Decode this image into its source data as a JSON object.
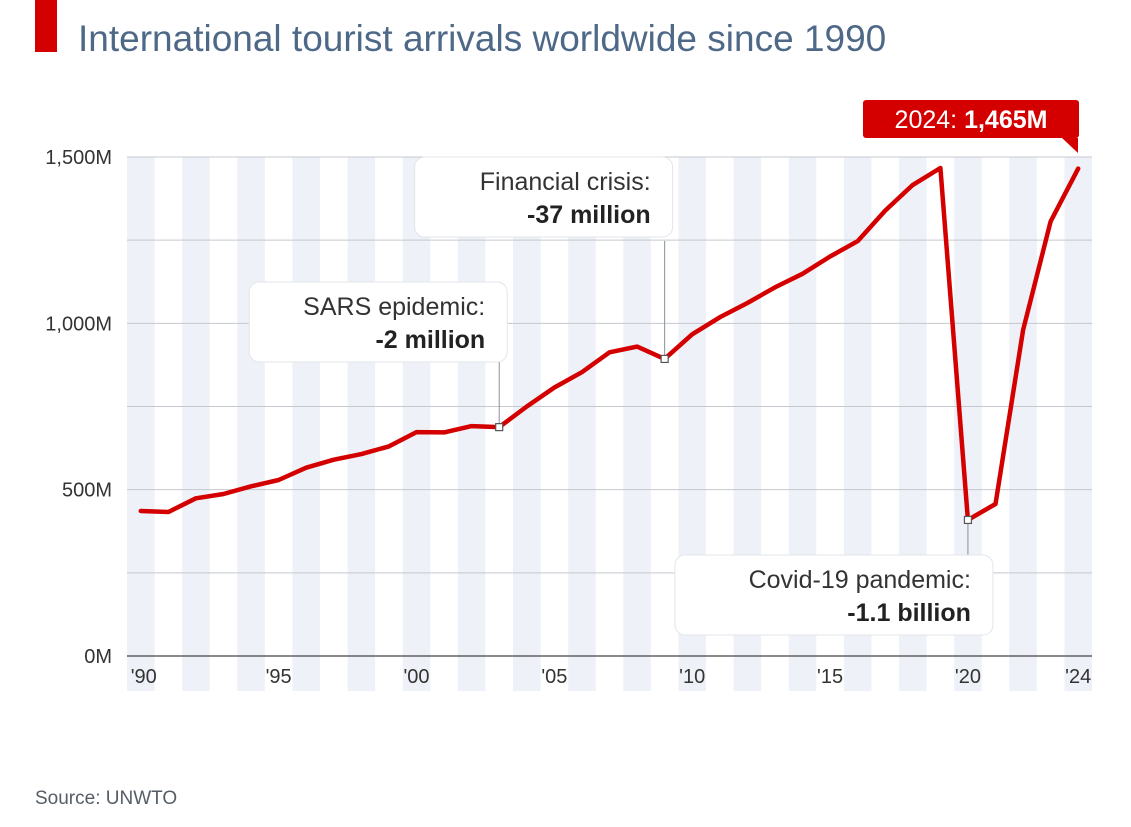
{
  "title": "International tourist arrivals worldwide since 1990",
  "source": "Source: UNWTO",
  "colors": {
    "accent": "#d40000",
    "line": "#d40000",
    "text": "#4e6887"
  },
  "chart_data": {
    "type": "line",
    "title": "International tourist arrivals worldwide since 1990",
    "ylim": [
      0,
      1500
    ],
    "y_ticks": [
      0,
      500,
      1000,
      1500
    ],
    "y_tick_labels": [
      "0M",
      "500M",
      "1,000M",
      "1,500M"
    ],
    "x_ticks": [
      1990,
      1995,
      2000,
      2005,
      2010,
      2015,
      2020,
      2024
    ],
    "x_tick_labels": [
      "'90",
      "'95",
      "'00",
      "'05",
      "'10",
      "'15",
      "'20",
      "'24"
    ],
    "grid": true,
    "series": [
      {
        "x": [
          1990,
          1991,
          1992,
          1993,
          1994,
          1995,
          1996,
          1997,
          1998,
          1999,
          2000,
          2001,
          2002,
          2003,
          2004,
          2005,
          2006,
          2007,
          2008,
          2009,
          2010,
          2011,
          2012,
          2013,
          2014,
          2015,
          2016,
          2017,
          2018,
          2019,
          2020,
          2021,
          2022,
          2023,
          2024
        ],
        "values": [
          436,
          433,
          474,
          487,
          510,
          529,
          566,
          590,
          607,
          630,
          673,
          672,
          691,
          688,
          750,
          807,
          853,
          913,
          930,
          893,
          967,
          1018,
          1061,
          1108,
          1149,
          1201,
          1247,
          1339,
          1416,
          1467,
          409,
          457,
          980,
          1306,
          1465
        ]
      }
    ],
    "annotations": [
      {
        "x": 2003,
        "y": 688,
        "title": "SARS epidemic:",
        "value": "-2 million",
        "anchor": "left"
      },
      {
        "x": 2009,
        "y": 893,
        "title": "Financial crisis:",
        "value": "-37 million",
        "anchor": "left"
      },
      {
        "x": 2020,
        "y": 409,
        "title": "Covid-19 pandemic:",
        "value": "-1.1 billion",
        "anchor": "below"
      }
    ],
    "callout": {
      "x": 2024,
      "y": 1465,
      "year": "2024: ",
      "value": "1,465M"
    }
  }
}
